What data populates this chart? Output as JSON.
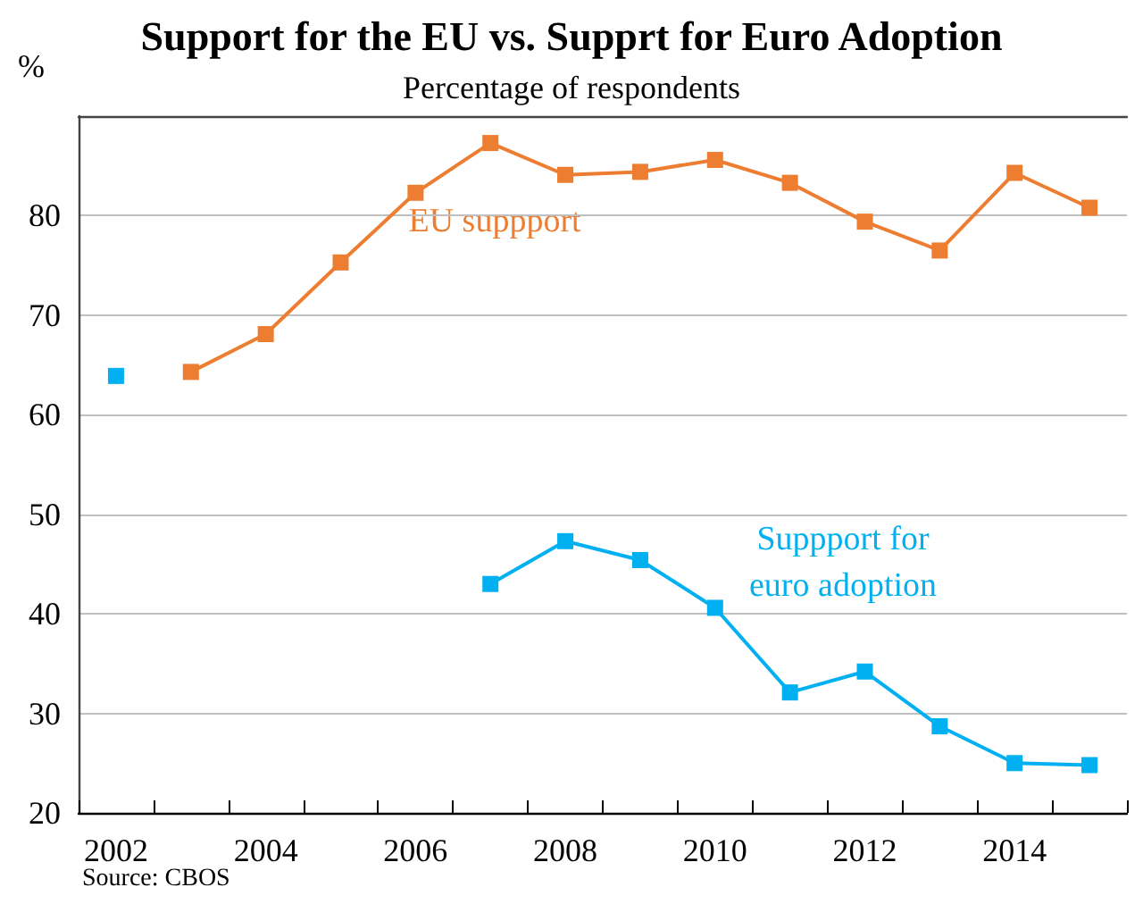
{
  "chart_data": {
    "type": "line",
    "title": "Support for the EU vs. Supprt for Euro Adoption",
    "subtitle": "Percentage of respondents",
    "ylabel": "%",
    "annotations": [
      "Source: CBOS"
    ],
    "categories": [
      "2002",
      null,
      "2004",
      null,
      "2006",
      null,
      "2008",
      null,
      "2010",
      null,
      "2012",
      null,
      "2014",
      null
    ],
    "series": [
      {
        "name": "EU suppport",
        "color": "#ed7d31",
        "values": [
          null,
          64.3,
          68.1,
          75.3,
          82.3,
          87.3,
          84.1,
          84.4,
          85.6,
          83.3,
          79.4,
          76.5,
          84.3,
          80.8
        ]
      },
      {
        "name": "Suppport for euro adoption",
        "color": "#00b0f0",
        "values": [
          63.9,
          null,
          null,
          null,
          null,
          43.0,
          47.3,
          45.4,
          40.6,
          32.1,
          34.2,
          28.7,
          25.0,
          24.8
        ]
      }
    ],
    "ylim": [
      20,
      90
    ],
    "yticks": [
      20,
      30,
      40,
      50,
      60,
      70,
      80
    ],
    "grid": "y",
    "legend": false,
    "marker": "square",
    "line_style": "solid"
  }
}
